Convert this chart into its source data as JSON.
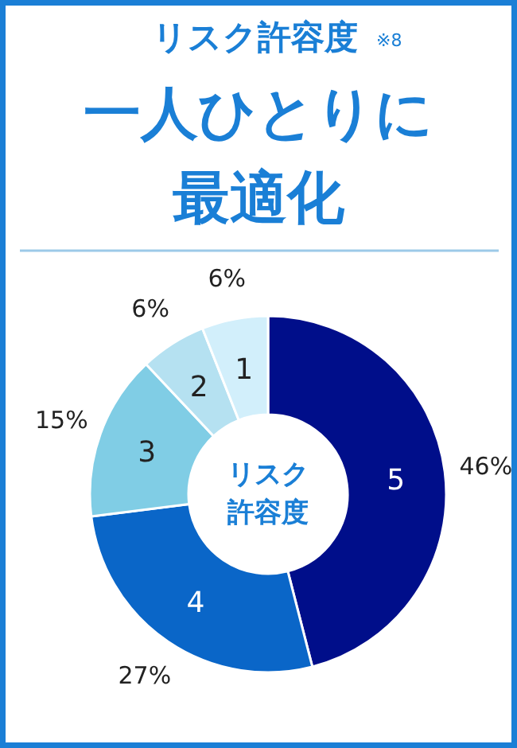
{
  "chart_data": {
    "type": "donut",
    "title": "リスク許容度",
    "subtitle": "一人ひとりに最適化",
    "annotations": [
      "※8",
      "リスク許容度"
    ],
    "categories": [
      "5",
      "4",
      "3",
      "2",
      "1"
    ],
    "values": [
      46,
      27,
      15,
      6,
      6
    ],
    "colors": [
      "#000e8a",
      "#0a66c8",
      "#80cde5",
      "#b5e1f1",
      "#d2effb"
    ],
    "value_labels": [
      "46%",
      "27%",
      "15%",
      "6%",
      "6%"
    ]
  }
}
